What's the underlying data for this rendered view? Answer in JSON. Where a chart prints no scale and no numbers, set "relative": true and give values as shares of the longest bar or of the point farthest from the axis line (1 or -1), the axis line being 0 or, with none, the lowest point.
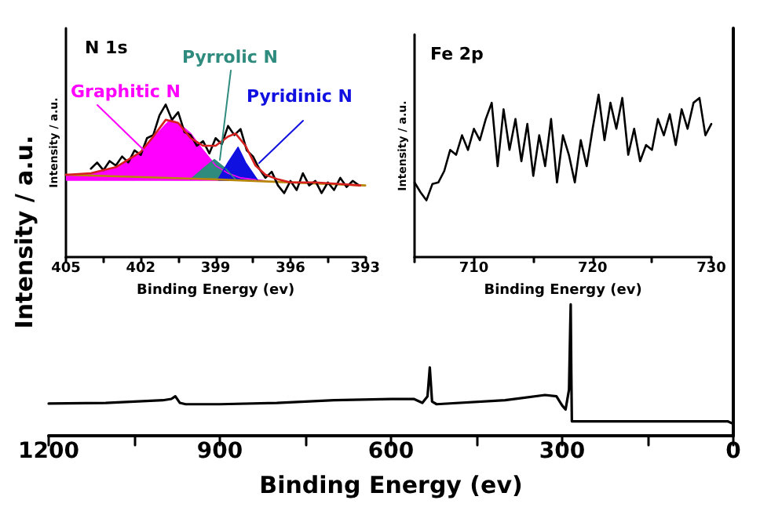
{
  "chart_data": [
    {
      "type": "line",
      "xlabel": "Binding Energy (ev)",
      "ylabel": "Intensity / a.u.",
      "relative": true,
      "color": "#000000",
      "xlim": [
        1200,
        0
      ],
      "xticks": [
        1200,
        {
          "value": 1050,
          "label": null
        },
        900,
        {
          "value": 750,
          "label": null
        },
        600,
        {
          "value": 450,
          "label": null
        },
        300,
        {
          "value": 150,
          "label": null
        },
        0
      ],
      "x": [
        1200,
        1100,
        1000,
        985,
        978,
        970,
        960,
        900,
        800,
        700,
        600,
        560,
        545,
        536,
        532,
        528,
        520,
        400,
        330,
        310,
        300,
        294,
        288,
        286,
        285,
        284,
        283,
        270,
        200,
        100,
        50,
        10,
        0
      ],
      "values": [
        0.245,
        0.25,
        0.27,
        0.28,
        0.3,
        0.25,
        0.24,
        0.24,
        0.25,
        0.27,
        0.28,
        0.28,
        0.25,
        0.3,
        0.52,
        0.26,
        0.24,
        0.27,
        0.31,
        0.3,
        0.23,
        0.2,
        0.35,
        0.8,
        1.0,
        0.5,
        0.11,
        0.11,
        0.11,
        0.11,
        0.11,
        0.11,
        0.09
      ]
    },
    {
      "type": "line",
      "title": "N 1s",
      "xlabel": "Binding Energy (ev)",
      "ylabel": "Intensity / a.u.",
      "relative": true,
      "xlim": [
        405,
        393
      ],
      "xticks": [
        405,
        {
          "value": 403.5,
          "label": null
        },
        402,
        {
          "value": 400.5,
          "label": null
        },
        399,
        {
          "value": 397.5,
          "label": null
        },
        396,
        {
          "value": 394.5,
          "label": null
        },
        393
      ],
      "series": [
        {
          "name": "Graphitic N",
          "type": "area",
          "color": "#ff00ff",
          "x": [
            405,
            404.5,
            404,
            403.5,
            403,
            402.5,
            402,
            401.5,
            401,
            400.8,
            400.5,
            400,
            399.5,
            399,
            398.5,
            398,
            397.5,
            397
          ],
          "values": [
            0.54,
            0.54,
            0.55,
            0.57,
            0.59,
            0.63,
            0.68,
            0.78,
            0.87,
            0.9,
            0.88,
            0.81,
            0.7,
            0.6,
            0.55,
            0.52,
            0.51,
            0.5
          ]
        },
        {
          "name": "Pyrrolic N",
          "type": "area",
          "color": "#2e8b7e",
          "x": [
            400,
            399.5,
            399.05,
            398.6,
            398.2
          ],
          "values": [
            0.51,
            0.58,
            0.64,
            0.58,
            0.51
          ]
        },
        {
          "name": "Pyridinic N",
          "type": "area",
          "color": "#1010e0",
          "x": [
            398.9,
            398.5,
            398.1,
            397.8,
            397.3
          ],
          "values": [
            0.51,
            0.62,
            0.72,
            0.62,
            0.5
          ]
        },
        {
          "type": "line",
          "color": "#b8860b",
          "x": [
            405,
            399,
            393
          ],
          "values": [
            0.54,
            0.51,
            0.47
          ]
        },
        {
          "type": "line",
          "color": "#000000",
          "x": [
            404,
            403.75,
            403.5,
            403.25,
            403,
            402.75,
            402.5,
            402.25,
            402,
            401.75,
            401.5,
            401.25,
            401,
            400.75,
            400.5,
            400.25,
            400,
            399.75,
            399.5,
            399.25,
            399,
            398.75,
            398.5,
            398.25,
            398,
            397.75,
            397.5,
            397.25,
            397,
            396.75,
            396.5,
            396.25,
            396,
            395.75,
            395.5,
            395.25,
            395,
            394.75,
            394.5,
            394.25,
            394,
            393.75,
            393.5,
            393.25
          ],
          "values": [
            0.58,
            0.62,
            0.57,
            0.63,
            0.6,
            0.66,
            0.62,
            0.7,
            0.67,
            0.78,
            0.8,
            0.93,
            1.0,
            0.9,
            0.95,
            0.82,
            0.8,
            0.73,
            0.76,
            0.68,
            0.78,
            0.74,
            0.86,
            0.8,
            0.84,
            0.7,
            0.66,
            0.58,
            0.52,
            0.56,
            0.47,
            0.42,
            0.5,
            0.44,
            0.55,
            0.47,
            0.5,
            0.42,
            0.49,
            0.44,
            0.52,
            0.46,
            0.5,
            0.47
          ]
        },
        {
          "type": "line",
          "color": "#d62020",
          "x": [
            405,
            404,
            403,
            402,
            401.5,
            401,
            400.5,
            400,
            399.5,
            399,
            398.5,
            398.2,
            397.8,
            397.4,
            397,
            396.5,
            396,
            395,
            394,
            393.2
          ],
          "values": [
            0.54,
            0.55,
            0.59,
            0.69,
            0.79,
            0.9,
            0.88,
            0.78,
            0.73,
            0.73,
            0.79,
            0.81,
            0.73,
            0.6,
            0.54,
            0.51,
            0.49,
            0.49,
            0.48,
            0.47
          ]
        }
      ]
    },
    {
      "type": "line",
      "title": "Fe 2p",
      "xlabel": "Binding Energy (ev)",
      "ylabel": "Intensity / a.u.",
      "relative": true,
      "color": "#000000",
      "xlim": [
        705,
        730
      ],
      "xticks": [
        {
          "value": 705,
          "label": null
        },
        710,
        {
          "value": 715,
          "label": null
        },
        720,
        {
          "value": 725,
          "label": null
        },
        730
      ],
      "x": [
        705,
        705.5,
        706,
        706.5,
        707,
        707.5,
        708,
        708.5,
        709,
        709.5,
        710,
        710.5,
        711,
        711.5,
        712,
        712.5,
        713,
        713.5,
        714,
        714.5,
        715,
        715.5,
        716,
        716.5,
        717,
        717.5,
        718,
        718.5,
        719,
        719.5,
        720,
        720.5,
        721,
        721.5,
        722,
        722.5,
        723,
        723.5,
        724,
        724.5,
        725,
        725.5,
        726,
        726.5,
        727,
        727.5,
        728,
        728.5,
        729,
        729.5,
        730
      ],
      "values": [
        0.46,
        0.4,
        0.35,
        0.45,
        0.46,
        0.53,
        0.66,
        0.63,
        0.75,
        0.66,
        0.79,
        0.72,
        0.85,
        0.95,
        0.56,
        0.91,
        0.66,
        0.85,
        0.59,
        0.82,
        0.5,
        0.75,
        0.56,
        0.85,
        0.46,
        0.75,
        0.63,
        0.46,
        0.72,
        0.56,
        0.79,
        1.0,
        0.72,
        0.95,
        0.79,
        0.98,
        0.63,
        0.79,
        0.59,
        0.69,
        0.66,
        0.85,
        0.75,
        0.88,
        0.69,
        0.91,
        0.79,
        0.95,
        0.98,
        0.75,
        0.82
      ]
    }
  ]
}
